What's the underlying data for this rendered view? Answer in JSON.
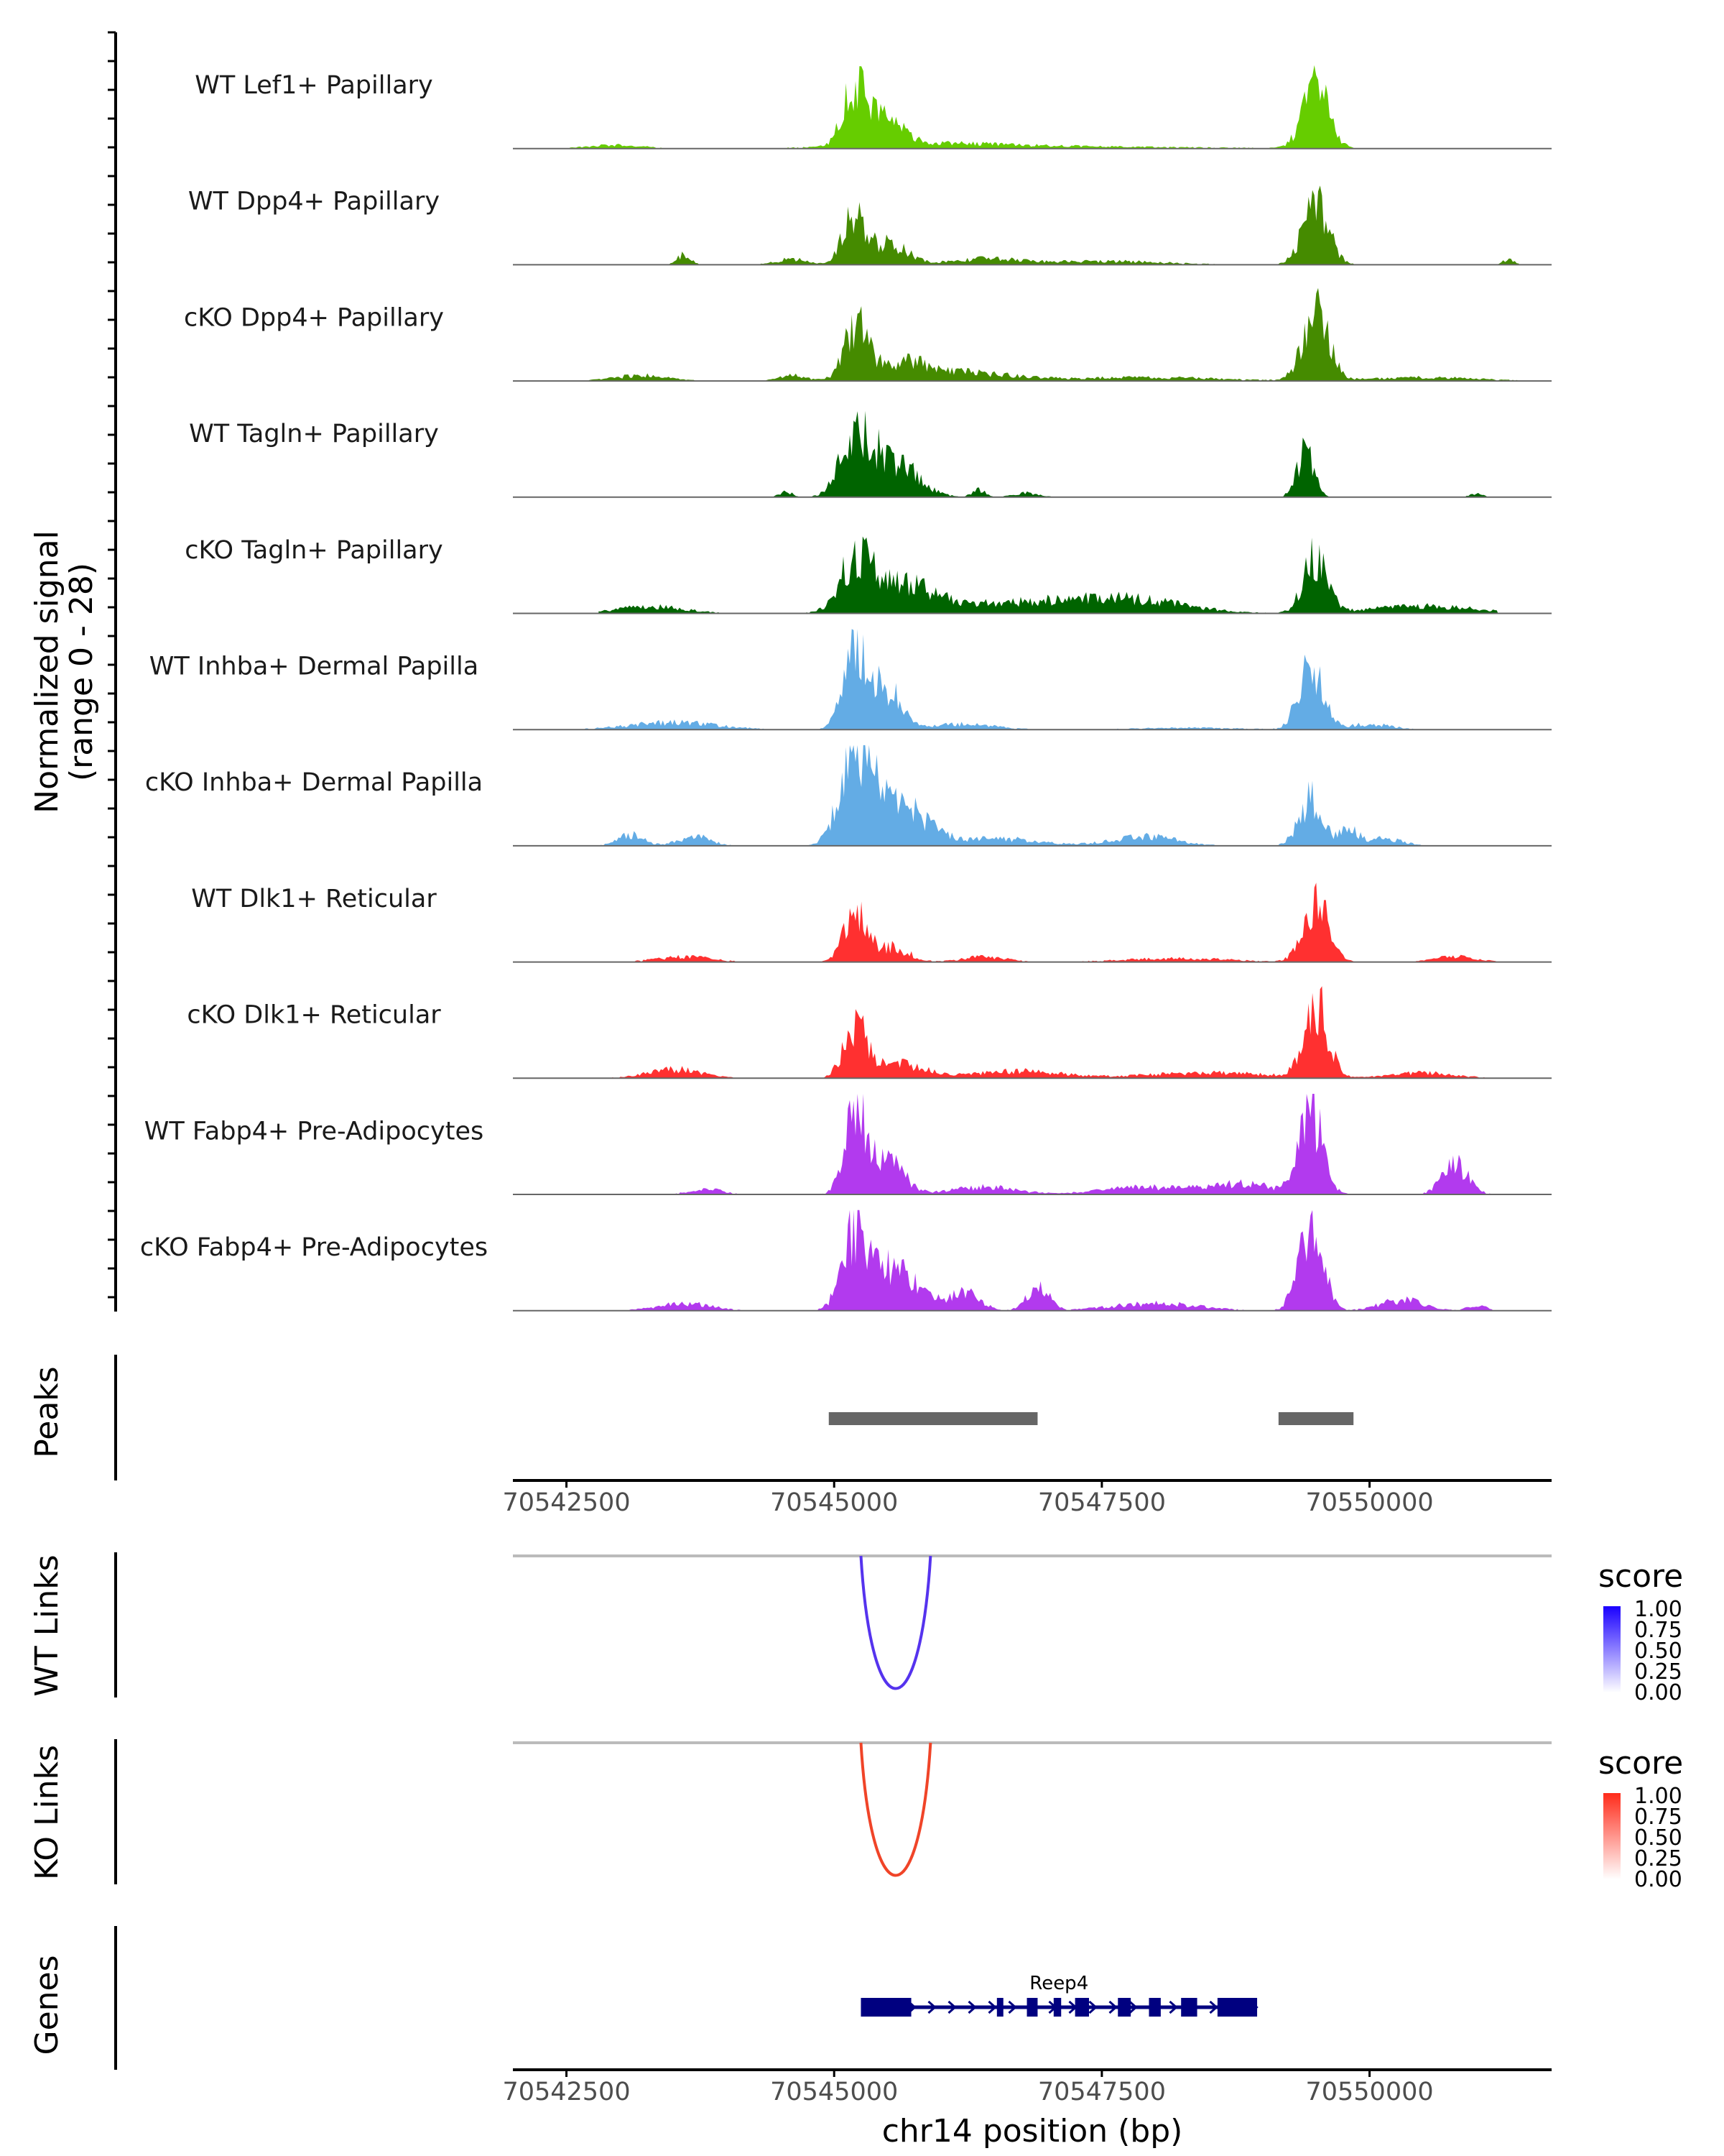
{
  "figure": {
    "signal_axis_label": [
      "Normalized signal",
      "(range 0 - 28)"
    ],
    "peaks_label": "Peaks",
    "wt_links_label": "WT Links",
    "ko_links_label": "KO Links",
    "genes_label": "Genes",
    "x_axis_label": "chr14 position (bp)"
  },
  "chart_data": {
    "type": "area",
    "title": "",
    "xlabel": "chr14 position (bp)",
    "ylabel": "Normalized signal (range 0 - 28)",
    "xlim": [
      70542000,
      70551700
    ],
    "ylim": [
      0,
      28
    ],
    "x_ticks": [
      70542500,
      70545000,
      70547500,
      70550000
    ],
    "x_tick_labels": [
      "70542500",
      "70545000",
      "70547500",
      "70550000"
    ],
    "tracks": [
      {
        "name": "WT Lef1+ Papillary",
        "color": "#66CD00",
        "range": [
          70542500,
          70551400
        ],
        "peaks": [
          [
            70545200,
            17,
            110
          ],
          [
            70545480,
            8,
            150
          ],
          [
            70549500,
            17,
            120
          ],
          [
            70542950,
            1,
            250
          ],
          [
            70545900,
            1.2,
            700
          ],
          [
            70547300,
            0.5,
            1200
          ]
        ]
      },
      {
        "name": "WT Dpp4+ Papillary",
        "color": "#458B00",
        "range": [
          70542500,
          70551400
        ],
        "peaks": [
          [
            70545180,
            13,
            100
          ],
          [
            70545500,
            6,
            180
          ],
          [
            70549500,
            17,
            120
          ],
          [
            70543600,
            3,
            60
          ],
          [
            70544600,
            1.5,
            150
          ],
          [
            70546400,
            1.5,
            300
          ],
          [
            70547500,
            1,
            600
          ],
          [
            70551300,
            1.5,
            50
          ]
        ]
      },
      {
        "name": "cKO Dpp4+ Papillary",
        "color": "#458B00",
        "range": [
          70542500,
          70551400
        ],
        "peaks": [
          [
            70545200,
            14,
            100
          ],
          [
            70545600,
            5,
            300
          ],
          [
            70549500,
            18,
            120
          ],
          [
            70543200,
            1.5,
            250
          ],
          [
            70544600,
            1.5,
            120
          ],
          [
            70546300,
            2,
            400
          ],
          [
            70547900,
            1,
            700
          ],
          [
            70550500,
            1,
            500
          ]
        ]
      },
      {
        "name": "WT Tagln+ Papillary",
        "color": "#006400",
        "range": [
          70542500,
          70551400
        ],
        "peaks": [
          [
            70545200,
            16,
            140
          ],
          [
            70545550,
            10,
            220
          ],
          [
            70549400,
            12,
            80
          ],
          [
            70544550,
            1.5,
            60
          ],
          [
            70546350,
            2,
            60
          ],
          [
            70546800,
            1.2,
            120
          ],
          [
            70551000,
            1,
            60
          ]
        ]
      },
      {
        "name": "cKO Tagln+ Papillary",
        "color": "#006400",
        "range": [
          70542800,
          70551200
        ],
        "peaks": [
          [
            70545200,
            13,
            140
          ],
          [
            70545600,
            8,
            300
          ],
          [
            70549500,
            16,
            110
          ],
          [
            70543300,
            2,
            300
          ],
          [
            70546800,
            3,
            700
          ],
          [
            70547800,
            3,
            500
          ],
          [
            70550500,
            2,
            500
          ]
        ]
      },
      {
        "name": "WT Inhba+ Dermal Papilla",
        "color": "#63ACE5",
        "range": [
          70542500,
          70551400
        ],
        "peaks": [
          [
            70545200,
            23,
            110
          ],
          [
            70545500,
            11,
            130
          ],
          [
            70549450,
            19,
            110
          ],
          [
            70543500,
            2,
            400
          ],
          [
            70546200,
            1.5,
            300
          ],
          [
            70550000,
            1.5,
            200
          ],
          [
            70548300,
            0.5,
            500
          ]
        ]
      },
      {
        "name": "cKO Inhba+ Dermal Papilla",
        "color": "#63ACE5",
        "range": [
          70542500,
          70551400
        ],
        "peaks": [
          [
            70545200,
            26,
            140
          ],
          [
            70545600,
            11,
            250
          ],
          [
            70549450,
            13,
            110
          ],
          [
            70543100,
            3,
            120
          ],
          [
            70543700,
            2.5,
            150
          ],
          [
            70546500,
            2,
            400
          ],
          [
            70547900,
            2.5,
            300
          ],
          [
            70550100,
            2,
            200
          ],
          [
            70549800,
            4,
            80
          ]
        ]
      },
      {
        "name": "WT Dlk1+ Reticular",
        "color": "#FF3030",
        "range": [
          70542500,
          70551400
        ],
        "peaks": [
          [
            70545200,
            13,
            110
          ],
          [
            70545550,
            4,
            150
          ],
          [
            70549500,
            16,
            120
          ],
          [
            70543600,
            1.5,
            250
          ],
          [
            70546400,
            1.5,
            200
          ],
          [
            70548200,
            1,
            500
          ],
          [
            70550800,
            1.5,
            200
          ]
        ]
      },
      {
        "name": "cKO Dlk1+ Reticular",
        "color": "#FF3030",
        "range": [
          70542500,
          70551400
        ],
        "peaks": [
          [
            70545200,
            13,
            110
          ],
          [
            70545600,
            4,
            250
          ],
          [
            70549500,
            20,
            110
          ],
          [
            70543500,
            2.5,
            250
          ],
          [
            70546700,
            2,
            400
          ],
          [
            70548500,
            1.5,
            600
          ],
          [
            70550500,
            1.5,
            300
          ]
        ]
      },
      {
        "name": "WT Fabp4+ Pre-Adipocytes",
        "color": "#B23AEE",
        "range": [
          70542500,
          70551400
        ],
        "peaks": [
          [
            70545200,
            22,
            100
          ],
          [
            70545500,
            9,
            150
          ],
          [
            70549450,
            23,
            110
          ],
          [
            70550800,
            8,
            120
          ],
          [
            70543800,
            1.5,
            150
          ],
          [
            70546400,
            2,
            300
          ],
          [
            70547900,
            2,
            400
          ],
          [
            70548800,
            3,
            300
          ]
        ]
      },
      {
        "name": "cKO Fabp4+ Pre-Adipocytes",
        "color": "#B23AEE",
        "range": [
          70542500,
          70551400
        ],
        "peaks": [
          [
            70545200,
            20,
            120
          ],
          [
            70545550,
            12,
            220
          ],
          [
            70549450,
            24,
            110
          ],
          [
            70546200,
            5,
            150
          ],
          [
            70546900,
            7,
            100
          ],
          [
            70543600,
            2,
            250
          ],
          [
            70548000,
            2,
            400
          ],
          [
            70550300,
            3,
            200
          ],
          [
            70551000,
            1.5,
            80
          ]
        ]
      }
    ],
    "peaks": [
      {
        "start": 70544950,
        "end": 70546900
      },
      {
        "start": 70549150,
        "end": 70549850
      }
    ],
    "links": [
      {
        "panel": "WT Links",
        "start": 70545250,
        "end": 70545900,
        "score": 0.75,
        "color": "#5533EE"
      },
      {
        "panel": "KO Links",
        "start": 70545250,
        "end": 70545900,
        "score": 0.75,
        "color": "#F04428"
      }
    ],
    "score_legends": [
      {
        "title": "score",
        "ticks": [
          "1.00",
          "0.75",
          "0.50",
          "0.25",
          "0.00"
        ],
        "low_color": "#FFFFFF",
        "high_color": "#1A00FF"
      },
      {
        "title": "score",
        "ticks": [
          "1.00",
          "0.75",
          "0.50",
          "0.25",
          "0.00"
        ],
        "low_color": "#FFFFFF",
        "high_color": "#FF2B1A"
      }
    ],
    "gene": {
      "name": "Reep4",
      "start": 70545250,
      "end": 70548950,
      "color": "#000080",
      "exons": [
        [
          70545250,
          70545720
        ],
        [
          70546520,
          70546580
        ],
        [
          70546800,
          70546900
        ],
        [
          70547050,
          70547120
        ],
        [
          70547250,
          70547380
        ],
        [
          70547650,
          70547770
        ],
        [
          70547940,
          70548050
        ],
        [
          70548240,
          70548390
        ],
        [
          70548580,
          70548950
        ]
      ]
    }
  }
}
